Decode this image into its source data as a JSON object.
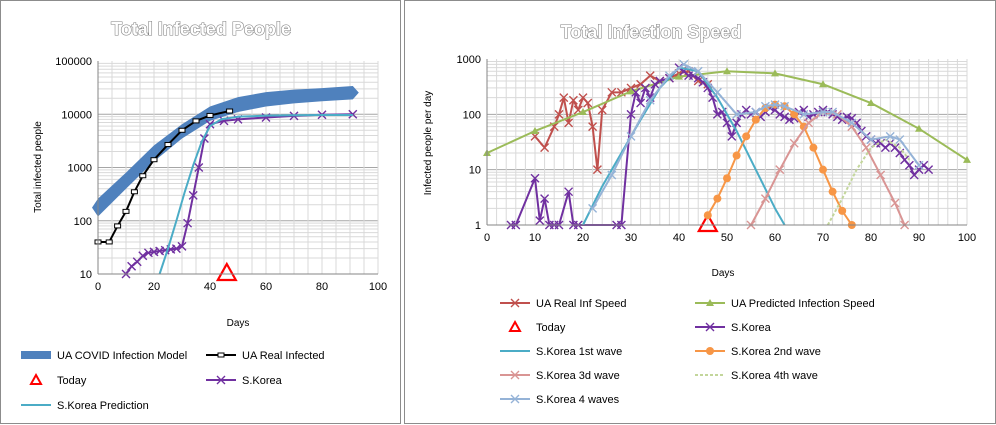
{
  "chart_data": [
    {
      "type": "line",
      "title": "Total Infected People",
      "xlabel": "Days",
      "ylabel": "Total infected people",
      "xlim": [
        0,
        100
      ],
      "ylim": [
        10,
        100000
      ],
      "y_scale": "log",
      "xticks": [
        "0",
        "20",
        "40",
        "60",
        "80",
        "100"
      ],
      "yticks": [
        "10",
        "100",
        "1000",
        "10000",
        "100000"
      ],
      "grid": true,
      "legend_position": "bottom",
      "series": [
        {
          "name": "UA COVID Infection Model",
          "color": "#4f81bd",
          "style": "band",
          "x": [
            0,
            10,
            20,
            30,
            40,
            50,
            60,
            70,
            80,
            91
          ],
          "y_low": [
            120,
            400,
            1300,
            3500,
            7500,
            11000,
            14000,
            16000,
            17500,
            19000
          ],
          "y_high": [
            260,
            800,
            2600,
            6500,
            14000,
            21000,
            26000,
            29000,
            31000,
            34000
          ]
        },
        {
          "name": "UA Real Infected",
          "color": "#000000",
          "style": "line-dash-marker",
          "x": [
            0,
            4,
            7,
            10,
            13,
            16,
            20,
            25,
            30,
            35,
            40,
            47
          ],
          "y": [
            40,
            40,
            80,
            150,
            350,
            700,
            1400,
            2700,
            5000,
            7500,
            9500,
            11500
          ]
        },
        {
          "name": "Today",
          "color": "#ff0000",
          "style": "triangle",
          "x": [
            46
          ],
          "y": [
            10
          ]
        },
        {
          "name": "S.Korea",
          "color": "#7030a0",
          "style": "line-x-marker",
          "x": [
            10,
            12,
            14,
            16,
            18,
            20,
            22,
            24,
            26,
            28,
            30,
            32,
            34,
            36,
            38,
            40,
            45,
            50,
            60,
            70,
            80,
            91
          ],
          "y": [
            10,
            14,
            17,
            22,
            25,
            26,
            27,
            28,
            29,
            30,
            33,
            90,
            300,
            1000,
            3500,
            6500,
            7500,
            8000,
            8700,
            9300,
            9800,
            10000
          ]
        },
        {
          "name": "S.Korea Prediction",
          "color": "#4bacc6",
          "style": "line",
          "x": [
            22,
            25,
            28,
            31,
            34,
            37,
            40,
            44,
            50,
            60,
            70,
            80,
            91
          ],
          "y": [
            10,
            30,
            100,
            350,
            1100,
            3000,
            6000,
            8000,
            9000,
            9400,
            9600,
            9700,
            9700
          ]
        }
      ]
    },
    {
      "type": "line",
      "title": "Total Infection Speed",
      "xlabel": "Days",
      "ylabel": "Infected people per day",
      "xlim": [
        0,
        100
      ],
      "ylim": [
        1,
        1000
      ],
      "y_scale": "log",
      "xticks": [
        "0",
        "10",
        "20",
        "30",
        "40",
        "50",
        "60",
        "70",
        "80",
        "90",
        "100"
      ],
      "yticks": [
        "1",
        "10",
        "100",
        "1000"
      ],
      "grid": true,
      "legend_position": "bottom",
      "series": [
        {
          "name": "UA Real Inf Speed",
          "color": "#c0504d",
          "style": "line-x-marker",
          "x": [
            10,
            12,
            14,
            15,
            16,
            17,
            18,
            19,
            20,
            21,
            22,
            23,
            24,
            26,
            28,
            30,
            32,
            34,
            36,
            38,
            40,
            42,
            44,
            46
          ],
          "y": [
            40,
            25,
            60,
            100,
            200,
            70,
            180,
            120,
            200,
            160,
            60,
            10,
            120,
            250,
            250,
            300,
            350,
            500,
            400,
            450,
            550,
            600,
            400,
            350
          ]
        },
        {
          "name": "UA Predicted Infection Speed",
          "color": "#9bbb59",
          "style": "line-triangle-marker",
          "x": [
            0,
            10,
            20,
            30,
            40,
            50,
            60,
            70,
            80,
            90,
            100
          ],
          "y": [
            20,
            50,
            110,
            260,
            480,
            600,
            550,
            350,
            160,
            55,
            15
          ]
        },
        {
          "name": "Today",
          "color": "#ff0000",
          "style": "triangle",
          "x": [
            46
          ],
          "y": [
            1
          ]
        },
        {
          "name": "S.Korea",
          "color": "#7030a0",
          "style": "line-x-marker",
          "x": [
            5,
            6,
            10,
            11,
            12,
            13,
            14,
            15,
            17,
            18,
            19,
            27,
            28,
            30,
            31,
            32,
            33,
            34,
            35,
            36,
            38,
            40,
            41,
            42,
            43,
            44,
            45,
            46,
            47,
            48,
            49,
            50,
            51,
            52,
            53,
            54,
            55,
            56,
            57,
            58,
            59,
            60,
            61,
            62,
            63,
            64,
            65,
            66,
            67,
            68,
            69,
            70,
            71,
            72,
            73,
            74,
            75,
            76,
            77,
            78,
            79,
            80,
            81,
            82,
            83,
            84,
            85,
            86,
            87,
            88,
            89,
            90,
            91,
            92
          ],
          "y": [
            1,
            1,
            7,
            1.2,
            3,
            1,
            1,
            1,
            4,
            1,
            1,
            1,
            1,
            100,
            250,
            160,
            300,
            200,
            350,
            400,
            450,
            700,
            600,
            500,
            500,
            450,
            380,
            300,
            200,
            100,
            110,
            70,
            40,
            70,
            100,
            120,
            100,
            110,
            90,
            110,
            130,
            120,
            100,
            90,
            80,
            85,
            110,
            120,
            90,
            100,
            110,
            120,
            110,
            100,
            90,
            80,
            90,
            85,
            70,
            50,
            40,
            35,
            30,
            30,
            25,
            30,
            25,
            20,
            15,
            12,
            8,
            10,
            12,
            10
          ]
        },
        {
          "name": "S.Korea 1st wave",
          "color": "#4bacc6",
          "style": "line",
          "x": [
            20,
            24,
            28,
            32,
            36,
            40,
            44,
            48,
            52,
            56,
            60,
            62
          ],
          "y": [
            1,
            5,
            20,
            80,
            300,
            700,
            600,
            200,
            50,
            10,
            2,
            1
          ]
        },
        {
          "name": "S.Korea 2nd wave",
          "color": "#f79646",
          "style": "line-circle-marker",
          "x": [
            46,
            48,
            50,
            52,
            54,
            56,
            58,
            60,
            62,
            64,
            66,
            68,
            70,
            72,
            74,
            76
          ],
          "y": [
            1.5,
            3,
            7,
            18,
            40,
            80,
            130,
            150,
            140,
            100,
            60,
            25,
            10,
            4,
            1.8,
            1
          ]
        },
        {
          "name": "S.Korea 3d wave",
          "color": "#d99594",
          "style": "line-x-marker",
          "x": [
            55,
            58,
            61,
            64,
            67,
            70,
            73,
            76,
            79,
            82,
            85,
            87
          ],
          "y": [
            1,
            3,
            10,
            30,
            70,
            110,
            100,
            60,
            25,
            8,
            2.5,
            1
          ]
        },
        {
          "name": "S.Korea 4th wave",
          "color": "#c3d69b",
          "style": "line-dash",
          "x": [
            71,
            74,
            77,
            80,
            83,
            86,
            88
          ],
          "y": [
            1,
            3,
            10,
            25,
            35,
            25,
            15
          ]
        },
        {
          "name": "S.Korea 4 waves",
          "color": "#95b3d7",
          "style": "line-x-marker",
          "x": [
            22,
            26,
            30,
            34,
            38,
            41,
            44,
            48,
            52,
            56,
            58,
            60,
            62,
            66,
            70,
            72,
            76,
            80,
            84,
            86,
            90
          ],
          "y": [
            2,
            8,
            40,
            180,
            500,
            800,
            600,
            250,
            100,
            110,
            140,
            150,
            140,
            100,
            110,
            110,
            70,
            35,
            40,
            35,
            12
          ]
        }
      ]
    }
  ]
}
